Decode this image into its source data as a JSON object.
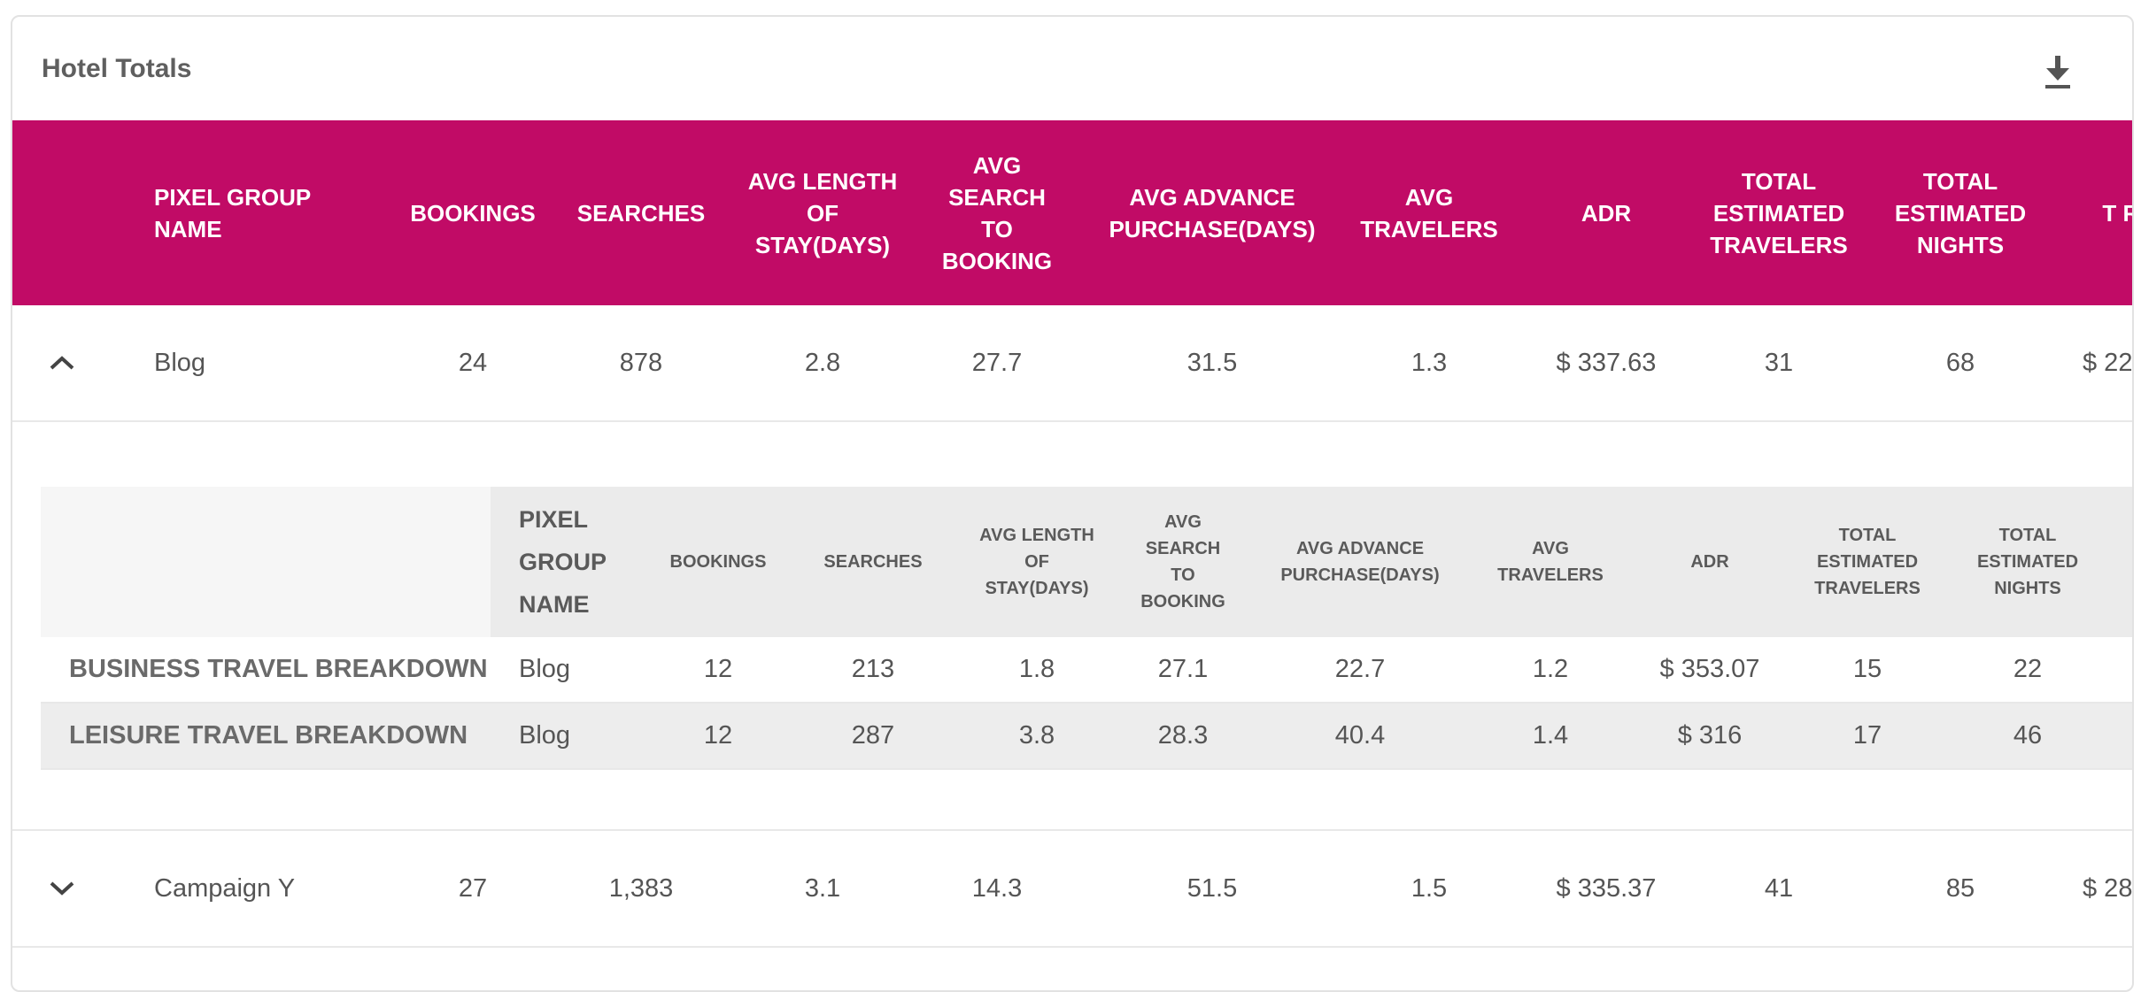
{
  "card": {
    "title": "Hotel Totals",
    "download_icon": "download-icon"
  },
  "colors": {
    "header_bg": "#c10b66",
    "header_text": "#ffffff",
    "sub_header_bg": "#ebebeb",
    "alt_row_bg": "#ededed"
  },
  "columns": [
    "PIXEL GROUP NAME",
    "BOOKINGS",
    "SEARCHES",
    "AVG LENGTH OF STAY(DAYS)",
    "AVG SEARCH TO BOOKING",
    "AVG ADVANCE PURCHASE(DAYS)",
    "AVG TRAVELERS",
    "ADR",
    "TOTAL ESTIMATED TRAVELERS",
    "TOTAL ESTIMATED NIGHTS",
    "T RE"
  ],
  "rows": [
    {
      "expand_icon": "chevron-up-icon",
      "name": "Blog",
      "bookings": "24",
      "searches": "878",
      "avg_length_of_stay": "2.8",
      "avg_search_to_booking": "27.7",
      "avg_advance_purchase": "31.5",
      "avg_travelers": "1.3",
      "adr": "$ 337.63",
      "total_estimated_travelers": "31",
      "total_estimated_nights": "68",
      "truncated": "$ 22"
    },
    {
      "expand_icon": "chevron-down-icon",
      "name": "Campaign Y",
      "bookings": "27",
      "searches": "1,383",
      "avg_length_of_stay": "3.1",
      "avg_search_to_booking": "14.3",
      "avg_advance_purchase": "51.5",
      "avg_travelers": "1.5",
      "adr": "$ 335.37",
      "total_estimated_travelers": "41",
      "total_estimated_nights": "85",
      "truncated": "$ 28"
    }
  ],
  "breakdown": {
    "columns": [
      "PIXEL GROUP NAME",
      "BOOKINGS",
      "SEARCHES",
      "AVG LENGTH OF STAY(DAYS)",
      "AVG SEARCH TO BOOKING",
      "AVG ADVANCE PURCHASE(DAYS)",
      "AVG TRAVELERS",
      "ADR",
      "TOTAL ESTIMATED TRAVELERS",
      "TOTAL ESTIMATED NIGHTS"
    ],
    "rows": [
      {
        "label": "BUSINESS TRAVEL BREAKDOWN",
        "name": "Blog",
        "bookings": "12",
        "searches": "213",
        "avg_length_of_stay": "1.8",
        "avg_search_to_booking": "27.1",
        "avg_advance_purchase": "22.7",
        "avg_travelers": "1.2",
        "adr": "$ 353.07",
        "total_estimated_travelers": "15",
        "total_estimated_nights": "22"
      },
      {
        "label": "LEISURE TRAVEL BREAKDOWN",
        "name": "Blog",
        "bookings": "12",
        "searches": "287",
        "avg_length_of_stay": "3.8",
        "avg_search_to_booking": "28.3",
        "avg_advance_purchase": "40.4",
        "avg_travelers": "1.4",
        "adr": "$ 316",
        "total_estimated_travelers": "17",
        "total_estimated_nights": "46"
      }
    ]
  }
}
